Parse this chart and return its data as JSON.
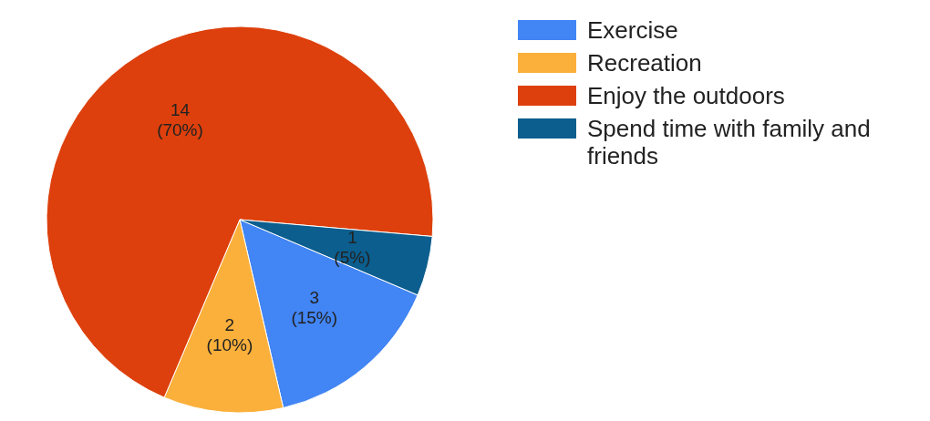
{
  "chart_data": {
    "type": "pie",
    "categories": [
      "Exercise",
      "Recreation",
      "Enjoy the outdoors",
      "Spend time with family and friends"
    ],
    "values": [
      3,
      2,
      14,
      1
    ],
    "colors": [
      "#4285f4",
      "#fbb03b",
      "#dd400c",
      "#0b5e8e"
    ],
    "value_labels": [
      "3 (15%)",
      "2 (10%)",
      "14 (70%)",
      "1 (5%)"
    ],
    "legend": "top right"
  }
}
